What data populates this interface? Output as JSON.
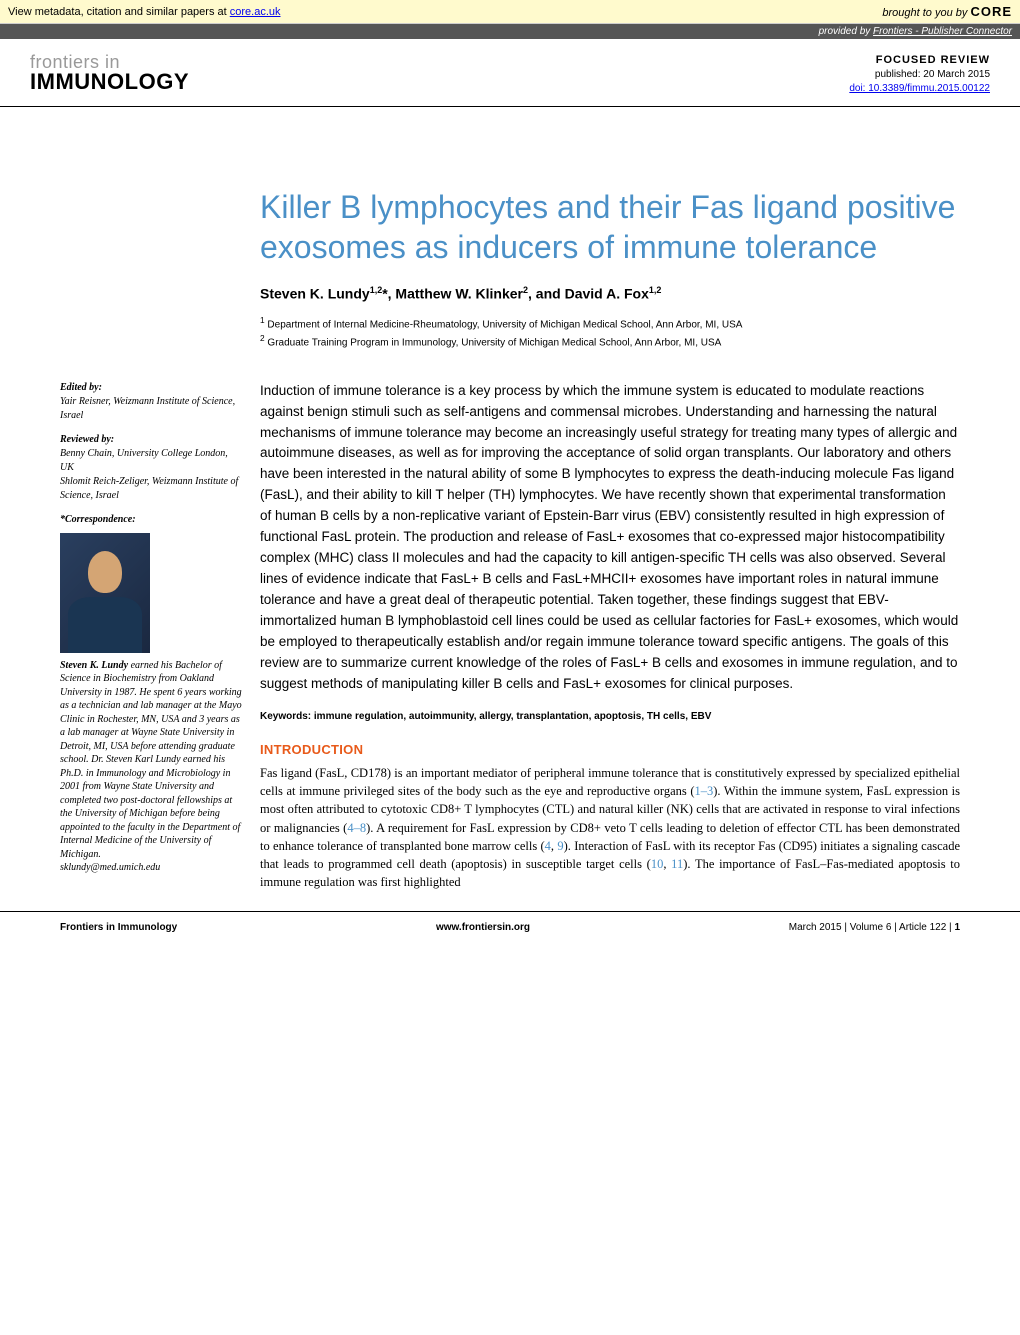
{
  "colors": {
    "title_blue": "#4a90c7",
    "section_orange": "#e85a1a",
    "metadata_bg": "#fffacd",
    "provided_bg": "#555555",
    "link_blue": "#0000ee"
  },
  "metadata_bar": {
    "text_prefix": "View metadata, citation and similar papers at ",
    "link_text": "core.ac.uk",
    "brought_by": "brought to you by",
    "brand": "CORE"
  },
  "provided_by": {
    "prefix": "provided by ",
    "source": "Frontiers - Publisher Connector"
  },
  "header": {
    "frontiers": "frontiers in",
    "journal": "IMMUNOLOGY",
    "review_type": "FOCUSED REVIEW",
    "published": "published: 20 March 2015",
    "doi": "doi: 10.3389/fimmu.2015.00122"
  },
  "article": {
    "title": "Killer B lymphocytes and their Fas ligand positive exosomes as inducers of immune tolerance",
    "authors_html": "Steven K. Lundy<sup>1,2</sup>*, Matthew W. Klinker<sup>2</sup>, and David A. Fox<sup>1,2</sup>",
    "affiliations": [
      "Department of Internal Medicine-Rheumatology, University of Michigan Medical School, Ann Arbor, MI, USA",
      "Graduate Training Program in Immunology, University of Michigan Medical School, Ann Arbor, MI, USA"
    ]
  },
  "sidebar": {
    "edited_label": "Edited by:",
    "edited_by": "Yair Reisner, Weizmann Institute of Science, Israel",
    "reviewed_label": "Reviewed by:",
    "reviewed_by_1": "Benny Chain, University College London, UK",
    "reviewed_by_2": "Shlomit Reich-Zeliger, Weizmann Institute of Science, Israel",
    "correspondence_label": "*Correspondence:",
    "bio_name": "Steven K. Lundy",
    "bio_text": " earned his Bachelor of Science in Biochemistry from Oakland University in 1987. He spent 6 years working as a technician and lab manager at the Mayo Clinic in Rochester, MN, USA and 3 years as a lab manager at Wayne State University in Detroit, MI, USA before attending graduate school. Dr. Steven Karl Lundy earned his Ph.D. in Immunology and Microbiology in 2001 from Wayne State University and completed two post-doctoral fellowships at the University of Michigan before being appointed to the faculty in the Department of Internal Medicine of the University of Michigan.",
    "email": "sklundy@med.umich.edu"
  },
  "abstract": "Induction of immune tolerance is a key process by which the immune system is educated to modulate reactions against benign stimuli such as self-antigens and commensal microbes. Understanding and harnessing the natural mechanisms of immune tolerance may become an increasingly useful strategy for treating many types of allergic and autoimmune diseases, as well as for improving the acceptance of solid organ transplants. Our laboratory and others have been interested in the natural ability of some B lymphocytes to express the death-inducing molecule Fas ligand (FasL), and their ability to kill T helper (TH) lymphocytes. We have recently shown that experimental transformation of human B cells by a non-replicative variant of Epstein-Barr virus (EBV) consistently resulted in high expression of functional FasL protein. The production and release of FasL+ exosomes that co-expressed major histocompatibility complex (MHC) class II molecules and had the capacity to kill antigen-specific TH cells was also observed. Several lines of evidence indicate that FasL+ B cells and FasL+MHCII+ exosomes have important roles in natural immune tolerance and have a great deal of therapeutic potential. Taken together, these findings suggest that EBV-immortalized human B lymphoblastoid cell lines could be used as cellular factories for FasL+ exosomes, which would be employed to therapeutically establish and/or regain immune tolerance toward specific antigens. The goals of this review are to summarize current knowledge of the roles of FasL+ B cells and exosomes in immune regulation, and to suggest methods of manipulating killer B cells and FasL+ exosomes for clinical purposes.",
  "keywords_label": "Keywords: ",
  "keywords": "immune regulation, autoimmunity, allergy, transplantation, apoptosis, TH cells, EBV",
  "intro_heading": "INTRODUCTION",
  "intro_parts": {
    "p1": "Fas ligand (FasL, CD178) is an important mediator of peripheral immune tolerance that is constitutively expressed by specialized epithelial cells at immune privileged sites of the body such as the eye and reproductive organs (",
    "r1": "1–3",
    "p2": "). Within the immune system, FasL expression is most often attributed to cytotoxic CD8+ T lymphocytes (CTL) and natural killer (NK) cells that are activated in response to viral infections or malignancies (",
    "r2": "4–8",
    "p3": "). A requirement for FasL expression by CD8+ veto T cells leading to deletion of effector CTL has been demonstrated to enhance tolerance of transplanted bone marrow cells (",
    "r3": "4",
    "p4": ", ",
    "r4": "9",
    "p5": "). Interaction of FasL with its receptor Fas (CD95) initiates a signaling cascade that leads to programmed cell death (apoptosis) in susceptible target cells (",
    "r5": "10",
    "p6": ", ",
    "r6": "11",
    "p7": "). The importance of FasL–Fas-mediated apoptosis to immune regulation was first highlighted"
  },
  "footer": {
    "left": "Frontiers in Immunology",
    "center": "www.frontiersin.org",
    "right_date": "March 2015",
    "right_vol": "Volume 6",
    "right_article": "Article 122",
    "right_page": "1"
  }
}
